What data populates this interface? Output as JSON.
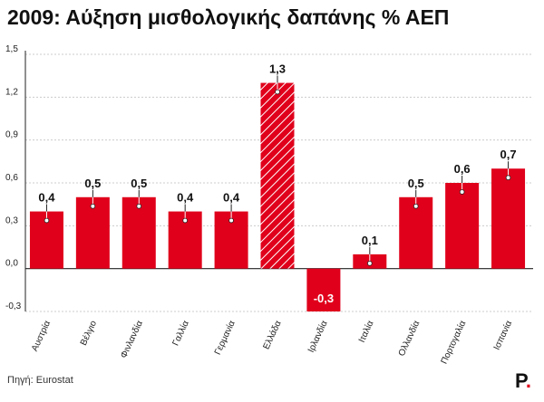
{
  "title": "2009: Αύξηση μισθολογικής δαπάνης % ΑΕΠ",
  "source": "Πηγή: Eurostat",
  "logo_letter": "P",
  "colors": {
    "bar": "#e0001b",
    "axis": "#222222",
    "grid": "#cccccc"
  },
  "chart_data": {
    "type": "bar",
    "title": "2009: Αύξηση μισθολογικής δαπάνης % ΑΕΠ",
    "xlabel": "",
    "ylabel": "",
    "ylim": [
      -0.3,
      1.5
    ],
    "yticks": [
      -0.3,
      0.0,
      0.3,
      0.6,
      0.9,
      1.2,
      1.5
    ],
    "ytick_labels": [
      "-0,3",
      "0,0",
      "0,3",
      "0,6",
      "0,9",
      "1,2",
      "1,5"
    ],
    "categories": [
      "Αυστρία",
      "Βέλγιο",
      "Φινλανδία",
      "Γαλλία",
      "Γερμανία",
      "Ελλάδα",
      "Ιρλανδία",
      "Ιταλία",
      "Ολλανδία",
      "Πορτογαλία",
      "Ισπανία"
    ],
    "values": [
      0.4,
      0.5,
      0.5,
      0.4,
      0.4,
      1.3,
      -0.3,
      0.1,
      0.5,
      0.6,
      0.7
    ],
    "value_labels": [
      "0,4",
      "0,5",
      "0,5",
      "0,4",
      "0,4",
      "1,3",
      "-0,3",
      "0,1",
      "0,5",
      "0,6",
      "0,7"
    ],
    "highlight": "Ελλάδα",
    "grid": true
  }
}
